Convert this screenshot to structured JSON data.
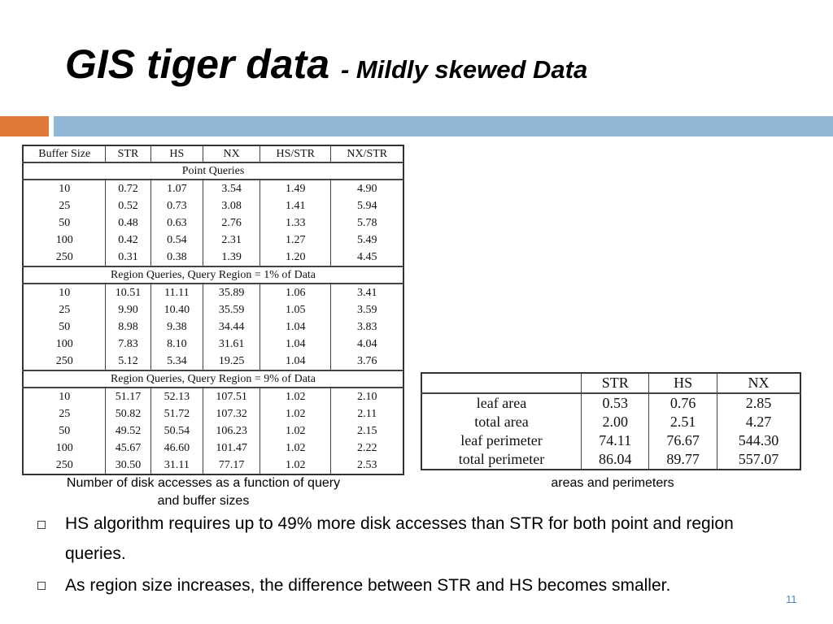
{
  "title": "GIS tiger data",
  "subtitle": "- Mildly skewed Data",
  "table1": {
    "header": [
      "Buffer Size",
      "STR",
      "HS",
      "NX",
      "HS/STR",
      "NX/STR"
    ],
    "sections": [
      {
        "label": "Point Queries",
        "rows": [
          [
            "10",
            "0.72",
            "1.07",
            "3.54",
            "1.49",
            "4.90"
          ],
          [
            "25",
            "0.52",
            "0.73",
            "3.08",
            "1.41",
            "5.94"
          ],
          [
            "50",
            "0.48",
            "0.63",
            "2.76",
            "1.33",
            "5.78"
          ],
          [
            "100",
            "0.42",
            "0.54",
            "2.31",
            "1.27",
            "5.49"
          ],
          [
            "250",
            "0.31",
            "0.38",
            "1.39",
            "1.20",
            "4.45"
          ]
        ]
      },
      {
        "label": "Region Queries, Query Region = 1% of Data",
        "rows": [
          [
            "10",
            "10.51",
            "11.11",
            "35.89",
            "1.06",
            "3.41"
          ],
          [
            "25",
            "9.90",
            "10.40",
            "35.59",
            "1.05",
            "3.59"
          ],
          [
            "50",
            "8.98",
            "9.38",
            "34.44",
            "1.04",
            "3.83"
          ],
          [
            "100",
            "7.83",
            "8.10",
            "31.61",
            "1.04",
            "4.04"
          ],
          [
            "250",
            "5.12",
            "5.34",
            "19.25",
            "1.04",
            "3.76"
          ]
        ]
      },
      {
        "label": "Region Queries, Query Region = 9% of Data",
        "rows": [
          [
            "10",
            "51.17",
            "52.13",
            "107.51",
            "1.02",
            "2.10"
          ],
          [
            "25",
            "50.82",
            "51.72",
            "107.32",
            "1.02",
            "2.11"
          ],
          [
            "50",
            "49.52",
            "50.54",
            "106.23",
            "1.02",
            "2.15"
          ],
          [
            "100",
            "45.67",
            "46.60",
            "101.47",
            "1.02",
            "2.22"
          ],
          [
            "250",
            "30.50",
            "31.11",
            "77.17",
            "1.02",
            "2.53"
          ]
        ]
      }
    ]
  },
  "caption1": "Number of disk accesses as a function of query and buffer sizes",
  "table2": {
    "header": [
      "STR",
      "HS",
      "NX"
    ],
    "rows": [
      {
        "label": "leaf area",
        "values": [
          "0.53",
          "0.76",
          "2.85"
        ]
      },
      {
        "label": "total area",
        "values": [
          "2.00",
          "2.51",
          "4.27"
        ]
      },
      {
        "label": "leaf perimeter",
        "values": [
          "74.11",
          "76.67",
          "544.30"
        ]
      },
      {
        "label": "total perimeter",
        "values": [
          "86.04",
          "89.77",
          "557.07"
        ]
      }
    ]
  },
  "caption2": "areas and perimeters",
  "bullets": [
    "HS algorithm requires up to 49% more disk accesses than STR for both point and region queries.",
    "As region size increases, the difference between STR and HS becomes smaller."
  ],
  "page_number": "11"
}
